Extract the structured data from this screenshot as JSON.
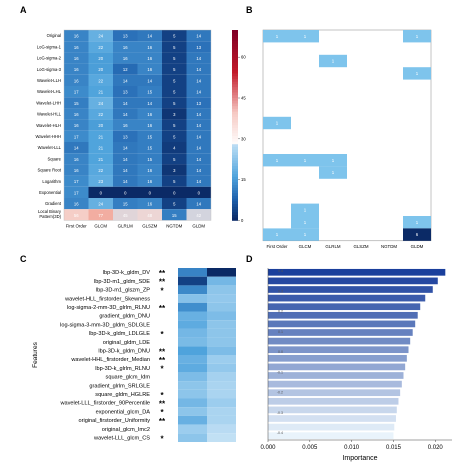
{
  "panel_letters": {
    "a": "A",
    "b": "B",
    "c": "C",
    "d": "D"
  },
  "colors": {
    "cmap": [
      "#f4cccc",
      "#ffffff",
      "#c9e3f3",
      "#5fb0e0",
      "#1c5ea8",
      "#08245e"
    ],
    "bar_top": "#1a3f9c",
    "bar_bottom": "#eef5fb",
    "cbar_top": "#800026"
  },
  "chart_data": [
    {
      "id": "A",
      "type": "heatmap",
      "rows": [
        "Original",
        "LoG-sigma-1",
        "LoG-sigma-2",
        "LoG-sigma-3",
        "Wavelet-LLH",
        "Wavelet-LHL",
        "Wavelet-LHH",
        "Wavelet-HLL",
        "Wavelet-HLH",
        "Wavelet-HHH",
        "Wavelet-LLL",
        "Square",
        "Square Root",
        "Logarithm",
        "Exponential",
        "Gradient",
        "Local Binary Pattern(3D)"
      ],
      "columns": [
        "First Order",
        "GLCM",
        "GLRLM",
        "GLSZM",
        "NGTDM",
        "GLDM"
      ],
      "values": [
        [
          16,
          24,
          13,
          14,
          5,
          14
        ],
        [
          16,
          22,
          16,
          16,
          5,
          13
        ],
        [
          16,
          20,
          16,
          16,
          5,
          14
        ],
        [
          16,
          20,
          12,
          16,
          5,
          14
        ],
        [
          16,
          22,
          14,
          14,
          5,
          14
        ],
        [
          17,
          21,
          13,
          15,
          5,
          14
        ],
        [
          15,
          24,
          14,
          14,
          5,
          13
        ],
        [
          16,
          22,
          14,
          16,
          3,
          14
        ],
        [
          16,
          20,
          16,
          16,
          5,
          14
        ],
        [
          17,
          21,
          13,
          15,
          5,
          14
        ],
        [
          14,
          21,
          14,
          15,
          4,
          14
        ],
        [
          16,
          21,
          14,
          15,
          5,
          14
        ],
        [
          16,
          22,
          14,
          16,
          3,
          14
        ],
        [
          17,
          23,
          14,
          16,
          5,
          14
        ],
        [
          17,
          0,
          0,
          0,
          0,
          0
        ],
        [
          16,
          24,
          15,
          16,
          5,
          14
        ],
        [
          56,
          77,
          45,
          48,
          15,
          42
        ]
      ],
      "colorbar": {
        "min": 0,
        "max": 70,
        "ticks": [
          0,
          15,
          30,
          45,
          60
        ]
      }
    },
    {
      "id": "B",
      "type": "heatmap",
      "rows": [
        "Original",
        "LoG-sigma-1",
        "LoG-sigma-2",
        "LoG-sigma-3",
        "Wavelet-LLH",
        "Wavelet-LHL",
        "Wavelet-LHH",
        "Wavelet-HLL",
        "Wavelet-HLH",
        "Wavelet-HHH",
        "Wavelet-LLL",
        "Square",
        "Square Root",
        "Logarithm",
        "Exponential",
        "Gradient",
        "Local Binary Pattern(3D)"
      ],
      "columns": [
        "First Order",
        "GLCM",
        "GLRLM",
        "GLSZM",
        "NGTDM",
        "GLDM"
      ],
      "values": [
        [
          1,
          1,
          0,
          0,
          0,
          1
        ],
        [
          0,
          0,
          0,
          0,
          0,
          0
        ],
        [
          0,
          0,
          1,
          0,
          0,
          0
        ],
        [
          0,
          0,
          0,
          0,
          0,
          1
        ],
        [
          0,
          0,
          0,
          0,
          0,
          0
        ],
        [
          0,
          0,
          0,
          0,
          0,
          0
        ],
        [
          0,
          0,
          0,
          0,
          0,
          0
        ],
        [
          1,
          0,
          0,
          0,
          0,
          0
        ],
        [
          0,
          0,
          0,
          0,
          0,
          0
        ],
        [
          0,
          0,
          0,
          0,
          0,
          0
        ],
        [
          1,
          1,
          1,
          0,
          0,
          0
        ],
        [
          0,
          0,
          1,
          0,
          0,
          0
        ],
        [
          0,
          0,
          0,
          0,
          0,
          0
        ],
        [
          0,
          0,
          0,
          0,
          0,
          0
        ],
        [
          0,
          1,
          0,
          0,
          0,
          0
        ],
        [
          0,
          1,
          0,
          0,
          0,
          1
        ],
        [
          1,
          1,
          0,
          0,
          0,
          6
        ]
      ]
    },
    {
      "id": "C",
      "type": "heatmap",
      "ylabel": "Features",
      "features": [
        "lbp-3D-k_gldm_DV",
        "lbp-3D-m1_gldm_SDE",
        "lbp-3D-m1_glszm_ZP",
        "wavelet-HLL_firstorder_Skewness",
        "log-sigma-2-mm-3D_glrlm_RLNU",
        "gradient_gldm_DNU",
        "log-sigma-3-mm-3D_gldm_SDLGLE",
        "lbp-3D-k_gldm_LDLGLE",
        "original_gldm_LDE",
        "lbp-3D-k_gldm_DNU",
        "wavelet-HHL_firstorder_Median",
        "lbp-3D-k_glrlm_RLNU",
        "square_glcm_Idm",
        "gradient_glrlm_SRLGLE",
        "square_gldm_HGLRE",
        "wavelet-LLL_firstorder_90Percentile",
        "exponential_glcm_DA",
        "original_firstorder_Uniformity",
        "original_glcm_Imc2",
        "wavelet-LLL_glcm_CS"
      ],
      "significance": [
        "**",
        "**",
        "*",
        "",
        "**",
        "",
        "",
        "*",
        "",
        "**",
        "**",
        "*",
        "",
        "",
        "*",
        "**",
        "*",
        "**",
        "",
        "*"
      ],
      "values": [
        [
          0.62,
          0.98
        ],
        [
          0.88,
          0.38
        ],
        [
          0.6,
          0.3
        ],
        [
          0.32,
          0.28
        ],
        [
          0.58,
          0.3
        ],
        [
          0.42,
          0.35
        ],
        [
          0.45,
          0.3
        ],
        [
          0.38,
          0.3
        ],
        [
          0.36,
          0.3
        ],
        [
          0.5,
          0.35
        ],
        [
          0.42,
          0.25
        ],
        [
          0.45,
          0.28
        ],
        [
          0.35,
          0.22
        ],
        [
          0.3,
          0.2
        ],
        [
          0.3,
          0.2
        ],
        [
          0.38,
          0.25
        ],
        [
          0.3,
          0.2
        ],
        [
          0.42,
          0.2
        ],
        [
          0.25,
          0.15
        ],
        [
          0.3,
          0.12
        ]
      ]
    },
    {
      "id": "D",
      "type": "bar",
      "orientation": "horizontal",
      "xlabel": "Importance",
      "xlim": [
        0,
        0.022
      ],
      "xticks": [
        "0.000",
        "0.005",
        "0.010",
        "0.015",
        "0.020"
      ],
      "values": [
        0.0212,
        0.0203,
        0.0197,
        0.0188,
        0.0182,
        0.0179,
        0.0176,
        0.0173,
        0.017,
        0.0168,
        0.0166,
        0.0164,
        0.0162,
        0.016,
        0.0158,
        0.0156,
        0.0154,
        0.0153,
        0.0151,
        0.015
      ],
      "colorbar_ticks": [
        "0.4",
        "0.3",
        "0.2",
        "0.1",
        "0.0",
        "-0.1",
        "-0.2",
        "-0.3",
        "-0.4"
      ]
    }
  ]
}
